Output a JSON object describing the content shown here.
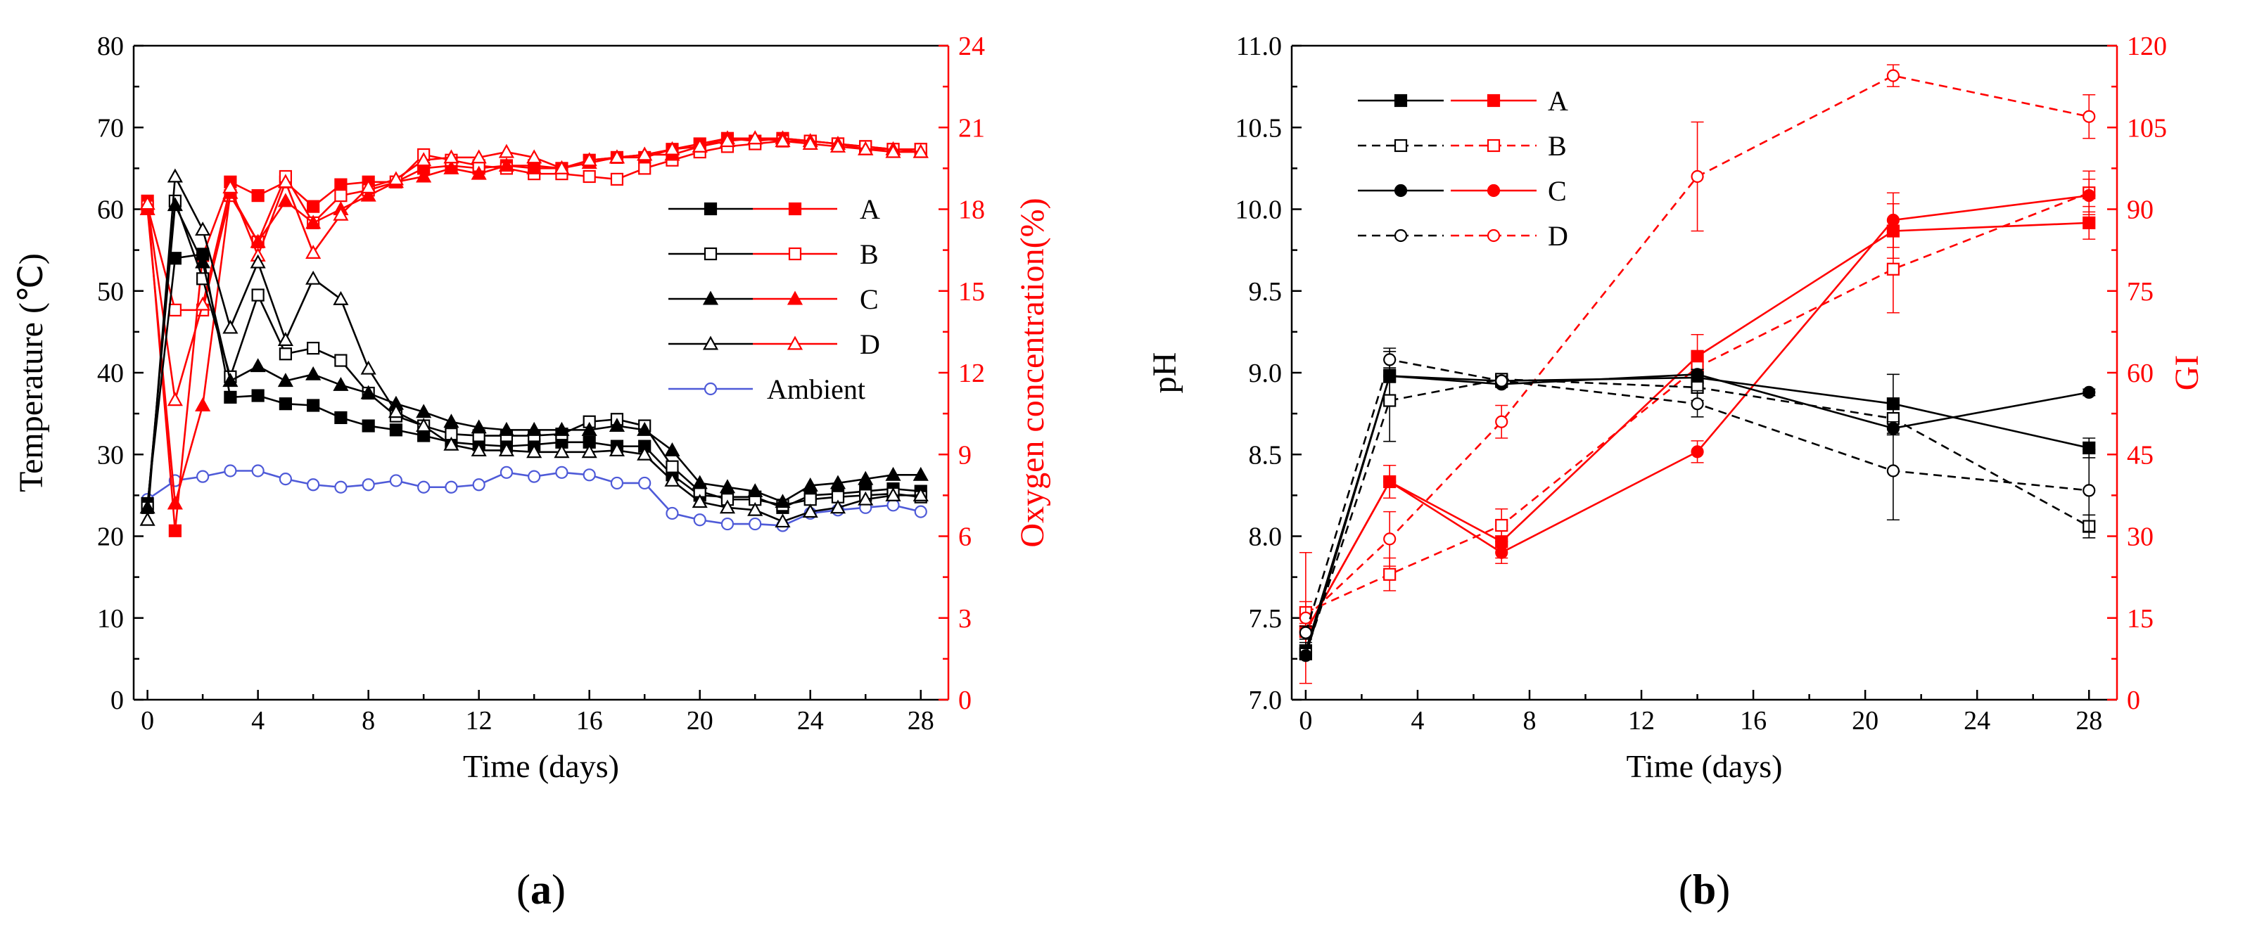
{
  "colors": {
    "black": "#000000",
    "red": "#ff0000",
    "blue": "#4e5ad8"
  },
  "chart_data": [
    {
      "type": "line",
      "panel_label": "a",
      "xlabel": "Time (days)",
      "ylabel_left": "Temperature (℃)",
      "ylabel_right": "Oxygen concentration(%)",
      "xlim": [
        -0.5,
        29
      ],
      "ylim_left": [
        0,
        80
      ],
      "ylim_right": [
        0,
        24
      ],
      "xticks": [
        0,
        4,
        8,
        12,
        16,
        20,
        24,
        28
      ],
      "yticks_left": [
        0,
        10,
        20,
        30,
        40,
        50,
        60,
        70,
        80
      ],
      "yticks_right": [
        0,
        3,
        6,
        9,
        12,
        15,
        18,
        21,
        24
      ],
      "legend_position": "center-right",
      "legend_entries": [
        "A",
        "B",
        "C",
        "D",
        "Ambient"
      ],
      "x": [
        0,
        1,
        2,
        3,
        4,
        5,
        6,
        7,
        8,
        9,
        10,
        11,
        12,
        13,
        14,
        15,
        16,
        17,
        18,
        19,
        20,
        21,
        22,
        23,
        24,
        25,
        26,
        27,
        28
      ],
      "temperature_series": [
        {
          "name": "A",
          "marker": "square-filled",
          "values": [
            24,
            54,
            54.5,
            37,
            37.2,
            36.2,
            36,
            34.5,
            33.5,
            33,
            32.3,
            31.5,
            31.2,
            31,
            31.2,
            31.5,
            31.5,
            31,
            31,
            27.5,
            25,
            24.8,
            24.8,
            23.5,
            25,
            25.2,
            25.5,
            25.8,
            25.5
          ]
        },
        {
          "name": "B",
          "marker": "square-open",
          "values": [
            23.5,
            61,
            51.5,
            39.5,
            49.5,
            42.3,
            43,
            41.5,
            37.5,
            34.7,
            33.5,
            32.5,
            32.3,
            32.3,
            32.3,
            32.5,
            34,
            34.3,
            33.5,
            28.5,
            25.5,
            24.5,
            24.5,
            23.8,
            24.5,
            24.8,
            25,
            25.2,
            24.8
          ]
        },
        {
          "name": "C",
          "marker": "triangle-filled",
          "values": [
            23.5,
            60.5,
            53.5,
            39,
            40.8,
            39,
            39.8,
            38.5,
            37.5,
            36.2,
            35.2,
            34,
            33.3,
            33,
            33,
            33,
            33,
            33.5,
            33,
            30.5,
            26.5,
            26,
            25.5,
            24.2,
            26.2,
            26.5,
            27,
            27.5,
            27.5
          ]
        },
        {
          "name": "D",
          "marker": "triangle-open",
          "values": [
            22,
            64,
            57.5,
            45.5,
            53.5,
            44,
            51.5,
            49,
            40.5,
            35.2,
            33.5,
            31.2,
            30.5,
            30.5,
            30.3,
            30.3,
            30.3,
            30.5,
            30,
            26.8,
            24.2,
            23.5,
            23.2,
            21.8,
            23,
            23.5,
            24.5,
            25,
            25
          ]
        },
        {
          "name": "Ambient",
          "marker": "circle-open",
          "values": [
            24.5,
            26.8,
            27.3,
            28,
            28,
            27,
            26.3,
            26,
            26.3,
            26.8,
            26,
            26,
            26.3,
            27.8,
            27.3,
            27.8,
            27.5,
            26.5,
            26.5,
            22.8,
            22,
            21.5,
            21.5,
            21.3,
            22.8,
            23.2,
            23.5,
            23.8,
            23
          ]
        }
      ],
      "oxygen_series": [
        {
          "name": "A",
          "marker": "square-filled",
          "values": [
            18.3,
            6.2,
            16.3,
            19,
            18.5,
            19,
            18.1,
            18.9,
            19,
            19,
            19.5,
            19.6,
            19.5,
            19.6,
            19.6,
            19.5,
            19.8,
            19.9,
            19.9,
            20.2,
            20.4,
            20.6,
            20.5,
            20.6,
            20.5,
            20.4,
            20.3,
            20.2,
            20.2
          ]
        },
        {
          "name": "B",
          "marker": "square-open",
          "values": [
            18.1,
            14.3,
            14.3,
            18.5,
            16.8,
            19.2,
            17.5,
            18.5,
            18.7,
            19,
            20,
            19.8,
            19.6,
            19.5,
            19.3,
            19.3,
            19.2,
            19.1,
            19.5,
            19.8,
            20.1,
            20.3,
            20.4,
            20.5,
            20.5,
            20.4,
            20.3,
            20.2,
            20.2
          ]
        },
        {
          "name": "C",
          "marker": "triangle-filled",
          "values": [
            18,
            7.2,
            10.8,
            18.6,
            16.8,
            18.3,
            17.5,
            18,
            18.5,
            19,
            19.2,
            19.5,
            19.3,
            19.6,
            19.5,
            19.5,
            19.7,
            19.9,
            20,
            20,
            20.3,
            20.6,
            20.6,
            20.6,
            20.5,
            20.4,
            20.2,
            20.2,
            20.1
          ]
        },
        {
          "name": "D",
          "marker": "triangle-open",
          "values": [
            18.2,
            11,
            14.5,
            18.8,
            16.3,
            19,
            16.4,
            17.8,
            18.8,
            19.1,
            19.8,
            19.9,
            19.9,
            20.1,
            19.9,
            19.5,
            19.8,
            19.9,
            20,
            20.2,
            20.3,
            20.5,
            20.6,
            20.5,
            20.4,
            20.3,
            20.2,
            20.1,
            20.1
          ]
        }
      ]
    },
    {
      "type": "line",
      "panel_label": "b",
      "xlabel": "Time (days)",
      "ylabel_left": "pH",
      "ylabel_right": "GI",
      "xlim": [
        -0.5,
        29
      ],
      "ylim_left": [
        7.0,
        11.0
      ],
      "ylim_right": [
        0,
        120
      ],
      "xticks": [
        0,
        4,
        8,
        12,
        16,
        20,
        24,
        28
      ],
      "yticks_left": [
        "7.0",
        "7.5",
        "8.0",
        "8.5",
        "9.0",
        "9.5",
        "10.0",
        "10.5",
        "11.0"
      ],
      "yticks_right": [
        0,
        15,
        30,
        45,
        60,
        75,
        90,
        105,
        120
      ],
      "legend_position": "top-left",
      "legend_entries": [
        "A",
        "B",
        "C",
        "D"
      ],
      "x": [
        0,
        3,
        7,
        14,
        21,
        28
      ],
      "ph_series": [
        {
          "name": "A",
          "marker": "square-filled",
          "dashed": false,
          "values": [
            7.3,
            8.98,
            8.95,
            8.97,
            8.81,
            8.54
          ],
          "errors": [
            0.05,
            0.17,
            0.03,
            0.05,
            0.18,
            0.06
          ]
        },
        {
          "name": "B",
          "marker": "square-open",
          "dashed": true,
          "values": [
            7.28,
            8.83,
            8.96,
            8.91,
            8.72,
            8.06
          ],
          "errors": [
            0.03,
            0.25,
            0.03,
            0.08,
            0.1,
            0.07
          ]
        },
        {
          "name": "C",
          "marker": "circle-filled",
          "dashed": false,
          "values": [
            7.27,
            8.98,
            8.93,
            8.99,
            8.66,
            8.88
          ],
          "errors": [
            0.02,
            0.04,
            0.02,
            0.03,
            0.04,
            0.02
          ]
        },
        {
          "name": "D",
          "marker": "circle-open",
          "dashed": true,
          "values": [
            7.41,
            9.08,
            8.95,
            8.81,
            8.4,
            8.28
          ],
          "errors": [
            0.04,
            0.05,
            0.03,
            0.08,
            0.3,
            0.25
          ]
        }
      ],
      "gi_series": [
        {
          "name": "A",
          "marker": "square-filled",
          "dashed": false,
          "values": [
            12.5,
            40,
            29,
            63,
            86,
            87.5
          ],
          "errors": [
            3,
            3,
            3,
            4,
            5,
            3
          ]
        },
        {
          "name": "B",
          "marker": "square-open",
          "dashed": true,
          "values": [
            16,
            23,
            32,
            61,
            79,
            93
          ],
          "errors": [
            2,
            3,
            3,
            3,
            8,
            4
          ]
        },
        {
          "name": "C",
          "marker": "circle-filled",
          "dashed": false,
          "values": [
            12.5,
            40,
            27,
            45.5,
            88,
            92.5
          ],
          "errors": [
            3,
            3,
            2,
            2,
            5,
            3
          ]
        },
        {
          "name": "D",
          "marker": "circle-open",
          "dashed": true,
          "values": [
            15,
            29.5,
            51,
            96,
            114.5,
            107
          ],
          "errors": [
            12,
            5,
            3,
            10,
            2,
            4
          ]
        }
      ]
    }
  ]
}
